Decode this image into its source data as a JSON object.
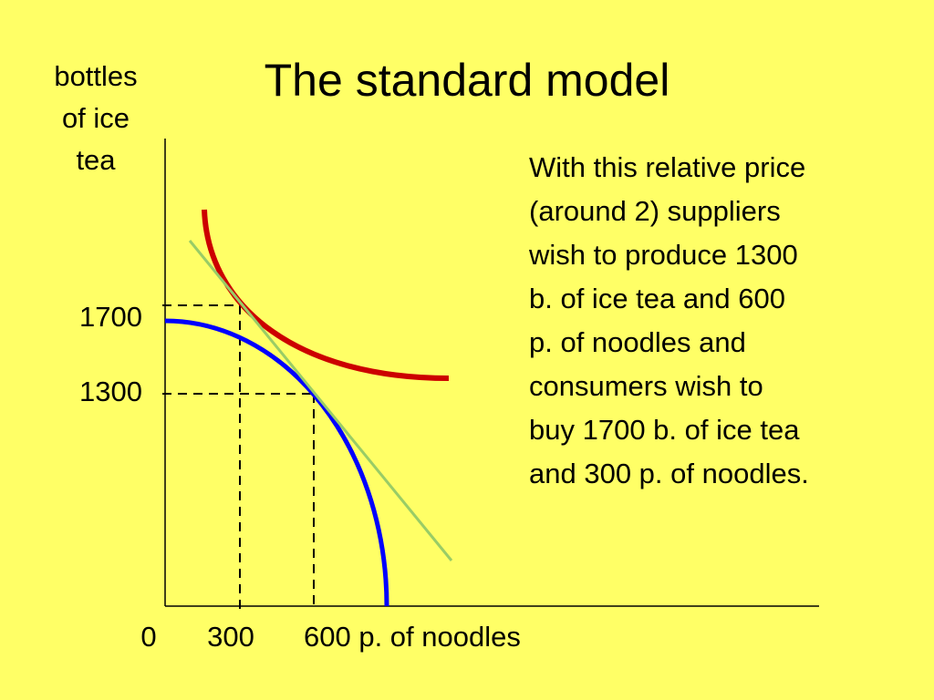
{
  "title": "The standard model",
  "y_axis_label": [
    "bottles",
    "of ice",
    "tea"
  ],
  "y_labels": [
    "1700",
    "1300"
  ],
  "x_labels": [
    "0",
    "300",
    "600 p. of noodles"
  ],
  "note": [
    "With this relative price",
    "(around 2) suppliers",
    "wish to produce 1300",
    "b. of ice tea and 600",
    "p. of noodles and",
    "consumers wish to",
    "buy 1700 b. of ice tea",
    "and 300 p. of noodles."
  ]
}
